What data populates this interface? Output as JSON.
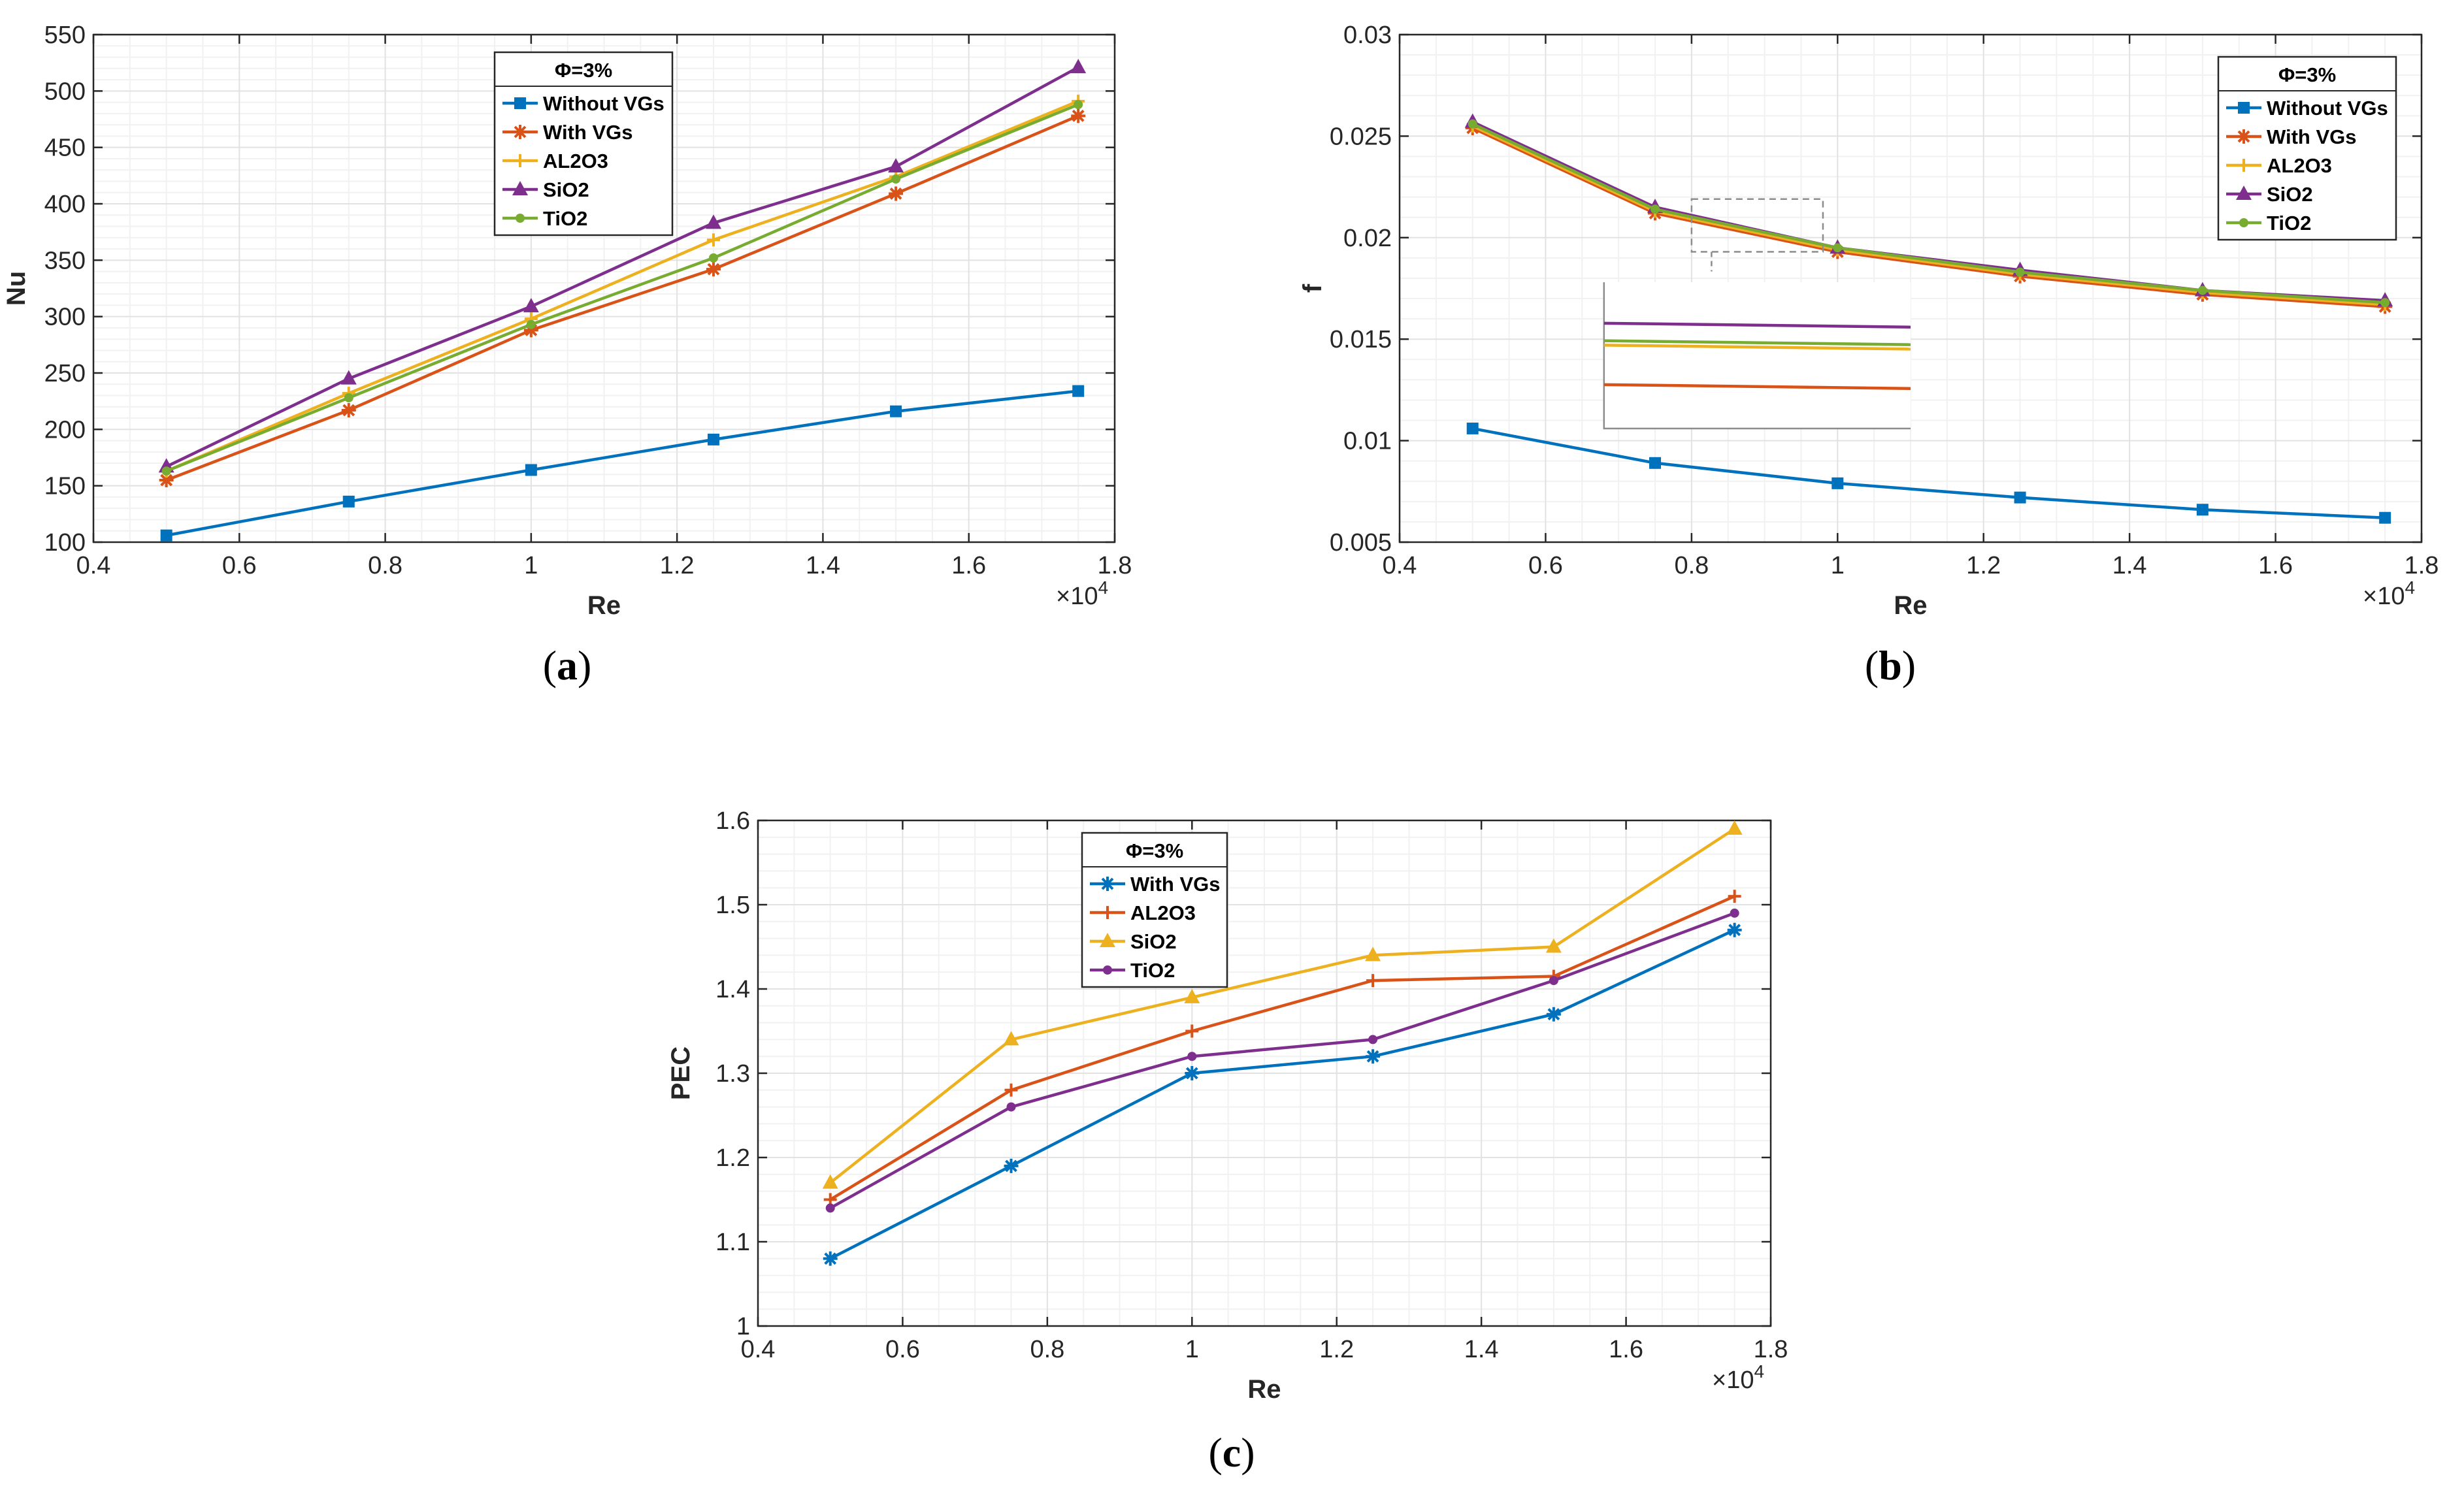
{
  "colors": {
    "blue": "#0072BD",
    "orange": "#D95319",
    "yellow": "#EDB120",
    "purple": "#7E2F8E",
    "green": "#77AC30"
  },
  "chart_data": [
    {
      "id": "a",
      "type": "line",
      "panel_label": [
        "(",
        "a",
        ")"
      ],
      "x": [
        5000,
        7500,
        10000,
        12500,
        15000,
        17500
      ],
      "xlabel": "Re",
      "ylabel": "Nu",
      "xlim": [
        4000,
        18000
      ],
      "ylim": [
        100,
        550
      ],
      "xticks": [
        4000,
        6000,
        8000,
        10000,
        12000,
        14000,
        16000,
        18000
      ],
      "xtick_labels": [
        "0.4",
        "0.6",
        "0.8",
        "1",
        "1.2",
        "1.4",
        "1.6",
        "1.8"
      ],
      "yticks": [
        100,
        150,
        200,
        250,
        300,
        350,
        400,
        450,
        500,
        550
      ],
      "ytick_labels": [
        "100",
        "150",
        "200",
        "250",
        "300",
        "350",
        "400",
        "450",
        "500",
        "550"
      ],
      "x_exponent": "×10",
      "x_exponent_power": "4",
      "legend_title": "Φ=3%",
      "legend_position": "top-center",
      "grid": true,
      "series": [
        {
          "name": "Without VGs",
          "color": "blue",
          "marker": "square",
          "values": [
            106,
            136,
            164,
            191,
            216,
            234
          ]
        },
        {
          "name": "With VGs",
          "color": "orange",
          "marker": "star",
          "values": [
            155,
            217,
            288,
            342,
            409,
            478
          ]
        },
        {
          "name": "AL2O3",
          "color": "yellow",
          "marker": "plus",
          "values": [
            163,
            232,
            298,
            368,
            424,
            491
          ]
        },
        {
          "name": "SiO2",
          "color": "purple",
          "marker": "triangle",
          "values": [
            167,
            245,
            309,
            383,
            433,
            521
          ]
        },
        {
          "name": "TiO2",
          "color": "green",
          "marker": "dot",
          "values": [
            163,
            228,
            293,
            352,
            422,
            488
          ]
        }
      ]
    },
    {
      "id": "b",
      "type": "line",
      "panel_label": [
        "(",
        "b",
        ")"
      ],
      "x": [
        5000,
        7500,
        10000,
        12500,
        15000,
        17500
      ],
      "xlabel": "Re",
      "ylabel": "f",
      "xlim": [
        4000,
        18000
      ],
      "ylim": [
        0.005,
        0.03
      ],
      "xticks": [
        4000,
        6000,
        8000,
        10000,
        12000,
        14000,
        16000,
        18000
      ],
      "xtick_labels": [
        "0.4",
        "0.6",
        "0.8",
        "1",
        "1.2",
        "1.4",
        "1.6",
        "1.8"
      ],
      "yticks": [
        0.005,
        0.01,
        0.015,
        0.02,
        0.025,
        0.03
      ],
      "ytick_labels": [
        "0.005",
        "0.01",
        "0.015",
        "0.02",
        "0.025",
        "0.03"
      ],
      "x_exponent": "×10",
      "x_exponent_power": "4",
      "legend_title": "Φ=3%",
      "legend_position": "top-right",
      "grid": true,
      "zoom_inset": {
        "source_x": [
          8000,
          9800
        ],
        "source_y": [
          0.0193,
          0.0219
        ],
        "levels": {
          "purple": 0.72,
          "green": 0.6,
          "yellow": 0.57,
          "orange": 0.3
        }
      },
      "series": [
        {
          "name": "Without VGs",
          "color": "blue",
          "marker": "square",
          "values": [
            0.0106,
            0.0089,
            0.0079,
            0.0072,
            0.0066,
            0.0062
          ]
        },
        {
          "name": "With VGs",
          "color": "orange",
          "marker": "star",
          "values": [
            0.0254,
            0.0212,
            0.0193,
            0.0181,
            0.0172,
            0.0166
          ]
        },
        {
          "name": "AL2O3",
          "color": "yellow",
          "marker": "plus",
          "values": [
            0.0255,
            0.0213,
            0.0194,
            0.0182,
            0.0173,
            0.0167
          ]
        },
        {
          "name": "SiO2",
          "color": "purple",
          "marker": "triangle",
          "values": [
            0.0257,
            0.0215,
            0.0195,
            0.0184,
            0.0174,
            0.0169
          ]
        },
        {
          "name": "TiO2",
          "color": "green",
          "marker": "dot",
          "values": [
            0.0256,
            0.0214,
            0.0195,
            0.0183,
            0.0174,
            0.0168
          ]
        }
      ]
    },
    {
      "id": "c",
      "type": "line",
      "panel_label": [
        "(",
        "c",
        ")"
      ],
      "x": [
        5000,
        7500,
        10000,
        12500,
        15000,
        17500
      ],
      "xlabel": "Re",
      "ylabel": "PEC",
      "xlim": [
        4000,
        18000
      ],
      "ylim": [
        1,
        1.6
      ],
      "xticks": [
        4000,
        6000,
        8000,
        10000,
        12000,
        14000,
        16000,
        18000
      ],
      "xtick_labels": [
        "0.4",
        "0.6",
        "0.8",
        "1",
        "1.2",
        "1.4",
        "1.6",
        "1.8"
      ],
      "yticks": [
        1,
        1.1,
        1.2,
        1.3,
        1.4,
        1.5,
        1.6
      ],
      "ytick_labels": [
        "1",
        "1.1",
        "1.2",
        "1.3",
        "1.4",
        "1.5",
        "1.6"
      ],
      "x_exponent": "×10",
      "x_exponent_power": "4",
      "legend_title": "Φ=3%",
      "legend_position": "top-left",
      "grid": true,
      "series": [
        {
          "name": "With VGs",
          "color": "blue",
          "marker": "star",
          "values": [
            1.08,
            1.19,
            1.3,
            1.32,
            1.37,
            1.47
          ]
        },
        {
          "name": "AL2O3",
          "color": "orange",
          "marker": "plus",
          "values": [
            1.15,
            1.28,
            1.35,
            1.41,
            1.415,
            1.51
          ]
        },
        {
          "name": "SiO2",
          "color": "yellow",
          "marker": "triangle",
          "values": [
            1.17,
            1.34,
            1.39,
            1.44,
            1.45,
            1.59
          ]
        },
        {
          "name": "TiO2",
          "color": "purple",
          "marker": "dot",
          "values": [
            1.14,
            1.26,
            1.32,
            1.34,
            1.41,
            1.49
          ]
        }
      ]
    }
  ]
}
